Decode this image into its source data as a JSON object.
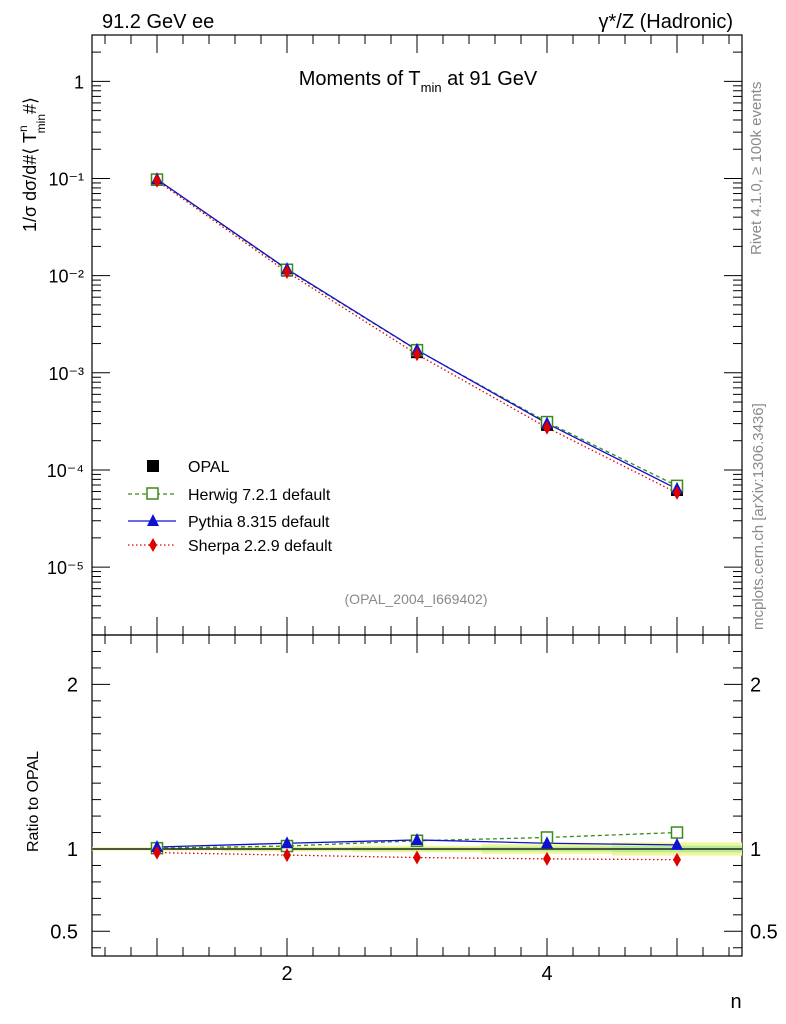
{
  "header": {
    "left_label": "91.2 GeV ee",
    "right_label": "γ*/Z (Hadronic)"
  },
  "side_labels": {
    "rivet": "Rivet 4.1.0, ≥ 100k events",
    "mcplots": "mcplots.cern.ch [arXiv:1306.3436]"
  },
  "chart_data": {
    "type": "line",
    "title_main": "Moments of T",
    "title_sub": "min",
    "title_tail": " at 91 GeV",
    "analysis_id": "(OPAL_2004_I669402)",
    "xlabel": "n",
    "ylabel_main": "1/σ  dσ/d#⟨ T",
    "ylabel_sup": "n",
    "ylabel_sub": "min",
    "ylabel_tail": "#⟩",
    "ratio_ylabel": "Ratio to OPAL",
    "xlim": [
      0.5,
      5.5
    ],
    "ylim_log": [
      2e-06,
      3
    ],
    "ratio_ylim": [
      0.35,
      2.3
    ],
    "x_ticks": [
      "2",
      "4"
    ],
    "y_ticks": [
      "1",
      "10⁻¹",
      "10⁻²",
      "10⁻³",
      "10⁻⁴",
      "10⁻⁵"
    ],
    "ratio_ticks": [
      "2",
      "1",
      "0.5"
    ],
    "x": [
      1,
      2,
      3,
      4,
      5
    ],
    "series": [
      {
        "name": "OPAL",
        "values": [
          0.097,
          0.0113,
          0.00163,
          0.000291,
          6.22e-05
        ],
        "color": "#000000",
        "marker": "square"
      },
      {
        "name": "Herwig 7.2.1 default",
        "values": [
          0.0975,
          0.0115,
          0.00171,
          0.000311,
          6.86e-05
        ],
        "color": "#3a8a1a",
        "marker": "open-square"
      },
      {
        "name": "Pythia 8.315 default",
        "values": [
          0.0982,
          0.0117,
          0.00172,
          0.000301,
          6.38e-05
        ],
        "color": "#1010d0",
        "marker": "triangle"
      },
      {
        "name": "Sherpa 2.2.9 default",
        "values": [
          0.0948,
          0.0109,
          0.00155,
          0.000273,
          5.8e-05
        ],
        "color": "#e00000",
        "marker": "diamond"
      }
    ],
    "ratio": {
      "x": [
        1,
        2,
        3,
        4,
        5
      ],
      "herwig": [
        1.005,
        1.018,
        1.05,
        1.07,
        1.1
      ],
      "pythia": [
        1.012,
        1.035,
        1.055,
        1.035,
        1.025
      ],
      "sherpa": [
        0.978,
        0.963,
        0.948,
        0.94,
        0.935
      ],
      "band_halfwidth": [
        0.01,
        0.015,
        0.02,
        0.03,
        0.04
      ]
    }
  }
}
